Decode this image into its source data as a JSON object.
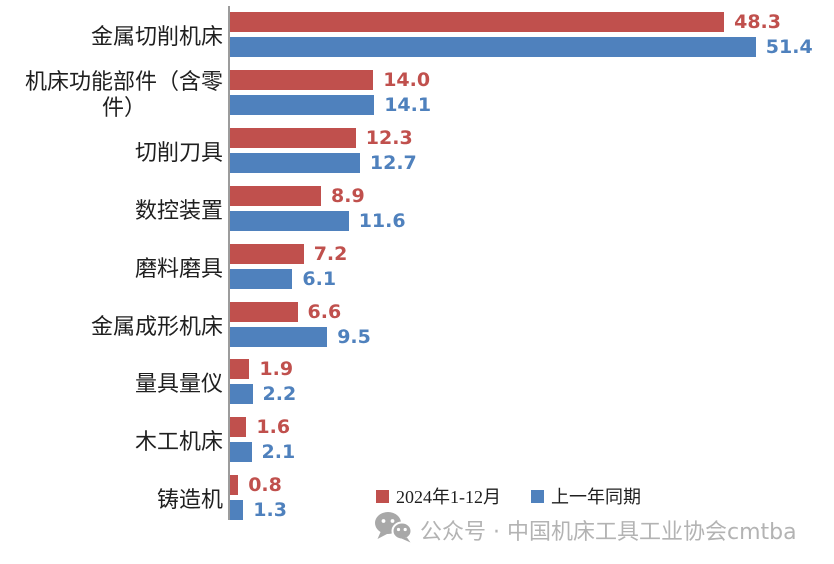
{
  "chart_data": {
    "type": "bar",
    "orientation": "horizontal",
    "title": "",
    "categories": [
      "金属切削机床",
      "机床功能部件（含零\n件）",
      "切削刀具",
      "数控装置",
      "磨料磨具",
      "金属成形机床",
      "量具量仪",
      "木工机床",
      "铸造机"
    ],
    "series": [
      {
        "name": "2024年1-12月",
        "color": "#C0504D",
        "values": [
          48.3,
          14.0,
          12.3,
          8.9,
          7.2,
          6.6,
          1.9,
          1.6,
          0.8
        ],
        "labels": [
          "48.3",
          "14.0",
          "12.3",
          "8.9",
          "7.2",
          "6.6",
          "1.9",
          "1.6",
          "0.8"
        ]
      },
      {
        "name": "上一年同期",
        "color": "#4F81BD",
        "values": [
          51.4,
          14.1,
          12.7,
          11.6,
          6.1,
          9.5,
          2.2,
          2.1,
          1.3
        ],
        "labels": [
          "51.4",
          "14.1",
          "12.7",
          "11.6",
          "6.1",
          "9.5",
          "2.2",
          "2.1",
          "1.3"
        ]
      }
    ],
    "xlim": [
      0,
      57.8
    ],
    "grid": false,
    "legend_position": "bottom-right",
    "value_label_position": "outside-end"
  },
  "legend": {
    "items": [
      {
        "label": "2024年1-12月",
        "color": "#C0504D"
      },
      {
        "label": "上一年同期",
        "color": "#4F81BD"
      }
    ]
  },
  "watermark": {
    "icon": "wechat-icon",
    "text": "公众号 · 中国机床工具工业协会cmtba",
    "color": "#B3B3B3"
  },
  "colors": {
    "axis_line": "#9C9C9C",
    "background": "#FFFFFF"
  }
}
